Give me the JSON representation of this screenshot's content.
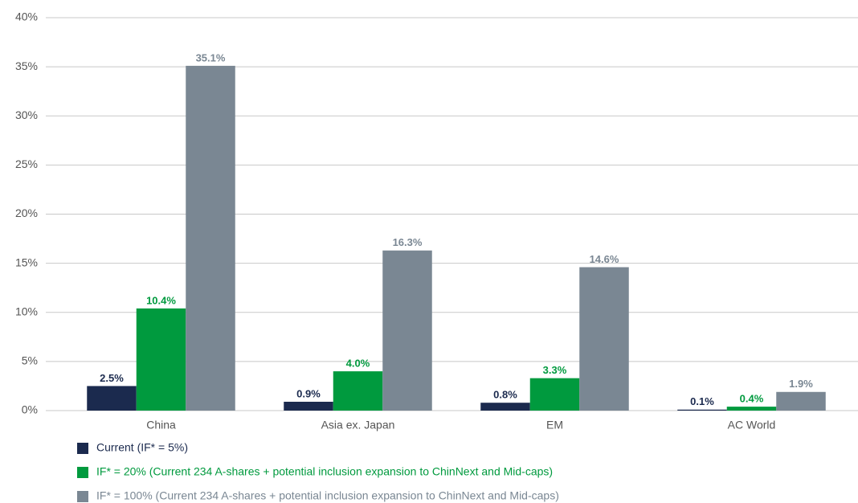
{
  "chart_data": {
    "type": "bar",
    "categories": [
      "China",
      "Asia ex. Japan",
      "EM",
      "AC World"
    ],
    "series": [
      {
        "name": "Current (IF* = 5%)",
        "color": "#1b2a4e",
        "values": [
          2.5,
          0.9,
          0.8,
          0.1
        ],
        "value_labels": [
          "2.5%",
          "0.9%",
          "0.8%",
          "0.1%"
        ]
      },
      {
        "name": "IF* = 20% (Current 234 A-shares + potential inclusion expansion to ChinNext and Mid-caps)",
        "color": "#009a3e",
        "values": [
          10.4,
          4.0,
          3.3,
          0.4
        ],
        "value_labels": [
          "10.4%",
          "4.0%",
          "3.3%",
          "0.4%"
        ]
      },
      {
        "name": "IF* = 100% (Current 234 A-shares + potential inclusion expansion to ChinNext and Mid-caps)",
        "color": "#7a8793",
        "values": [
          35.1,
          16.3,
          14.6,
          1.9
        ],
        "value_labels": [
          "35.1%",
          "16.3%",
          "14.6%",
          "1.9%"
        ]
      }
    ],
    "ylim": [
      0,
      40
    ],
    "yticks": [
      {
        "value": 0,
        "label": "0%"
      },
      {
        "value": 5,
        "label": "5%"
      },
      {
        "value": 10,
        "label": "10%"
      },
      {
        "value": 15,
        "label": "15%"
      },
      {
        "value": 20,
        "label": "20%"
      },
      {
        "value": 25,
        "label": "25%"
      },
      {
        "value": 30,
        "label": "30%"
      },
      {
        "value": 35,
        "label": "35%"
      },
      {
        "value": 40,
        "label": "40%"
      }
    ],
    "grid": true,
    "legend": "bottom"
  }
}
